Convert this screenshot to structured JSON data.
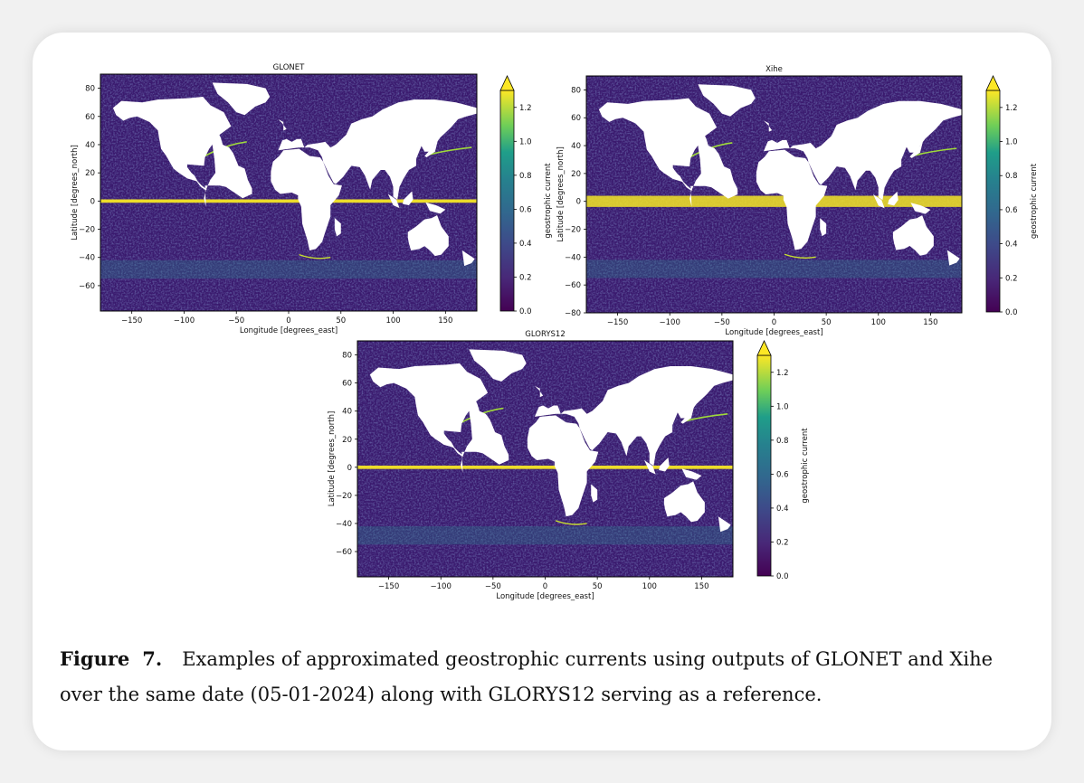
{
  "figure": {
    "caption_label": "Figure",
    "caption_number": "7.",
    "caption_text": "Examples of approximated geostrophic currents using outputs of GLONET and Xihe over the same date (05-01-2024) along with GLORYS12 serving as a reference."
  },
  "chart_data": [
    {
      "type": "heatmap",
      "title": "GLONET",
      "xlabel": "Longitude [degrees_east]",
      "ylabel": "Latitude [degrees_north]",
      "xlim": [
        -180,
        180
      ],
      "ylim": [
        -78,
        90
      ],
      "x_ticks": [
        -150,
        -100,
        -50,
        0,
        50,
        100,
        150
      ],
      "y_ticks": [
        -60,
        -40,
        -20,
        0,
        20,
        40,
        60,
        80
      ],
      "colorbar": {
        "label": "geostrophic current",
        "ticks": [
          0.0,
          0.2,
          0.4,
          0.6,
          0.8,
          1.0,
          1.2
        ],
        "range": [
          0.0,
          1.3
        ],
        "colormap": "viridis",
        "extend": "max"
      }
    },
    {
      "type": "heatmap",
      "title": "Xihe",
      "xlabel": "Longitude [degrees_east]",
      "ylabel": "Latitude [degrees_north]",
      "xlim": [
        -180,
        180
      ],
      "ylim": [
        -80,
        90
      ],
      "x_ticks": [
        -150,
        -100,
        -50,
        0,
        50,
        100,
        150
      ],
      "y_ticks": [
        -80,
        -60,
        -40,
        -20,
        0,
        20,
        40,
        60,
        80
      ],
      "colorbar": {
        "label": "geostrophic current",
        "ticks": [
          0.0,
          0.2,
          0.4,
          0.6,
          0.8,
          1.0,
          1.2
        ],
        "range": [
          0.0,
          1.3
        ],
        "colormap": "viridis",
        "extend": "max"
      }
    },
    {
      "type": "heatmap",
      "title": "GLORYS12",
      "xlabel": "Longitude [degrees_east]",
      "ylabel": "Latitude [degrees_north]",
      "xlim": [
        -180,
        180
      ],
      "ylim": [
        -78,
        90
      ],
      "x_ticks": [
        -150,
        -100,
        -50,
        0,
        50,
        100,
        150
      ],
      "y_ticks": [
        -60,
        -40,
        -20,
        0,
        20,
        40,
        60,
        80
      ],
      "colorbar": {
        "label": "geostrophic current",
        "ticks": [
          0.0,
          0.2,
          0.4,
          0.6,
          0.8,
          1.0,
          1.2
        ],
        "range": [
          0.0,
          1.3
        ],
        "colormap": "viridis",
        "extend": "max"
      }
    }
  ]
}
